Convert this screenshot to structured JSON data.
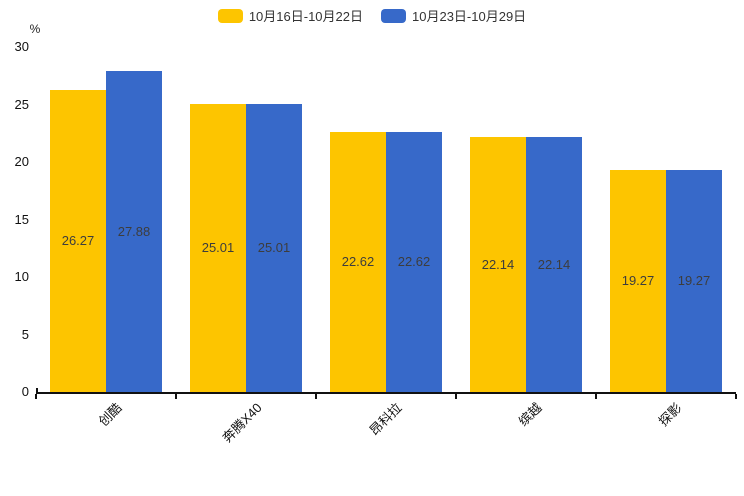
{
  "chart_data": {
    "type": "bar",
    "title": "",
    "unit_label": "%",
    "categories": [
      "创酷",
      "奔腾X40",
      "昂科拉",
      "缤越",
      "探影"
    ],
    "series": [
      {
        "name": "10月16日-10月22日",
        "color": "#FDC500",
        "values": [
          26.27,
          25.01,
          22.62,
          22.14,
          19.27
        ]
      },
      {
        "name": "10月23日-10月29日",
        "color": "#3769C9",
        "values": [
          27.88,
          25.01,
          22.62,
          22.14,
          19.27
        ]
      }
    ],
    "ylim": [
      0,
      30
    ],
    "yticks": [
      0,
      5,
      10,
      15,
      20,
      25,
      30
    ],
    "legend_position": "top",
    "grid": false,
    "value_labels": "inside-center",
    "axis_color": "#111111",
    "label_color": "#3d3d3d"
  }
}
